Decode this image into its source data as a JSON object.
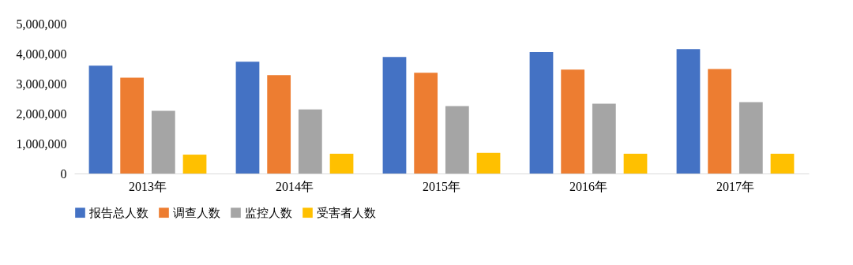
{
  "chart_data": {
    "type": "bar",
    "categories": [
      "2013年",
      "2014年",
      "2015年",
      "2016年",
      "2017年"
    ],
    "series": [
      {
        "name": "报告总人数",
        "color": "#4472c4",
        "values": [
          3600000,
          3730000,
          3890000,
          4050000,
          4150000
        ]
      },
      {
        "name": "调查人数",
        "color": "#ed7d31",
        "values": [
          3200000,
          3280000,
          3360000,
          3470000,
          3490000
        ]
      },
      {
        "name": "监控人数",
        "color": "#a5a5a5",
        "values": [
          2090000,
          2140000,
          2250000,
          2330000,
          2380000
        ]
      },
      {
        "name": "受害者人数",
        "color": "#ffc000",
        "values": [
          630000,
          660000,
          690000,
          660000,
          660000
        ]
      }
    ],
    "ylim": [
      0,
      5000000
    ],
    "yticks": [
      0,
      {
        "value": 1000000,
        "label": "1,000,000"
      },
      {
        "value": 2000000,
        "label": "2,000,000"
      },
      {
        "value": 3000000,
        "label": "3,000,000"
      },
      {
        "value": 4000000,
        "label": "4,000,000"
      },
      {
        "value": 5000000,
        "label": "5,000,000"
      }
    ],
    "grid": false,
    "legend": "bottom"
  }
}
